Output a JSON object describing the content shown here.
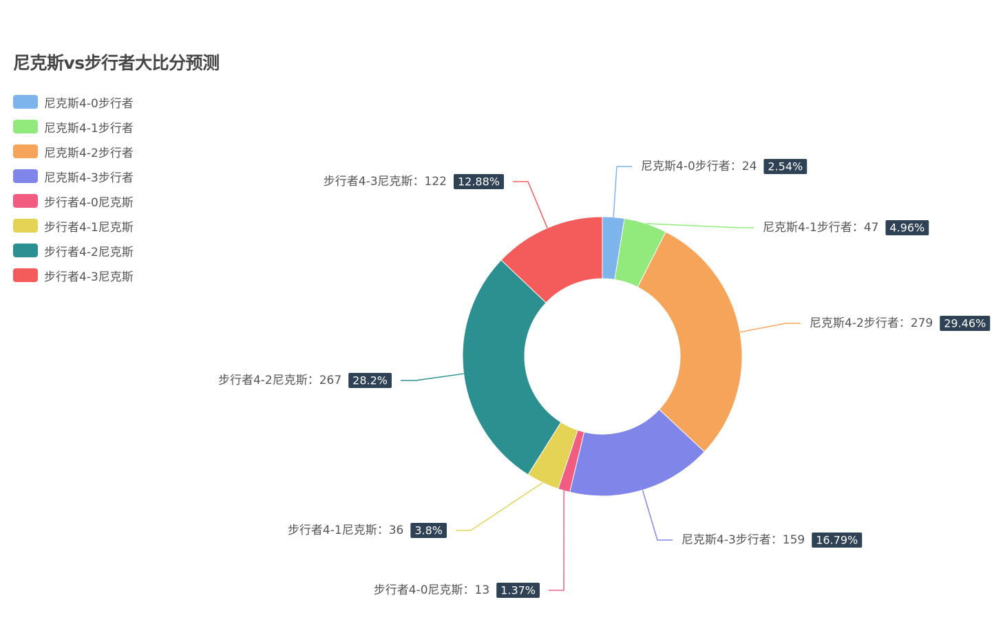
{
  "chart_data": {
    "type": "pie",
    "variant": "donut",
    "title": "尼克斯vs步行者大比分预测",
    "legend_position": "top-left",
    "slices": [
      {
        "name": "尼克斯4-0步行者",
        "value": 24,
        "percent": "2.54%",
        "color": "#7eb4ec"
      },
      {
        "name": "尼克斯4-1步行者",
        "value": 47,
        "percent": "4.96%",
        "color": "#91ea7b"
      },
      {
        "name": "尼克斯4-2步行者",
        "value": 279,
        "percent": "29.46%",
        "color": "#f7a45b"
      },
      {
        "name": "尼克斯4-3步行者",
        "value": 159,
        "percent": "16.79%",
        "color": "#8085e9"
      },
      {
        "name": "步行者4-0尼克斯",
        "value": 13,
        "percent": "1.37%",
        "color": "#f15c80"
      },
      {
        "name": "步行者4-1尼克斯",
        "value": 36,
        "percent": "3.8%",
        "color": "#e4d354"
      },
      {
        "name": "步行者4-2尼克斯",
        "value": 267,
        "percent": "28.2%",
        "color": "#2b908f"
      },
      {
        "name": "步行者4-3尼克斯",
        "value": 122,
        "percent": "12.88%",
        "color": "#f45b5b"
      }
    ]
  }
}
